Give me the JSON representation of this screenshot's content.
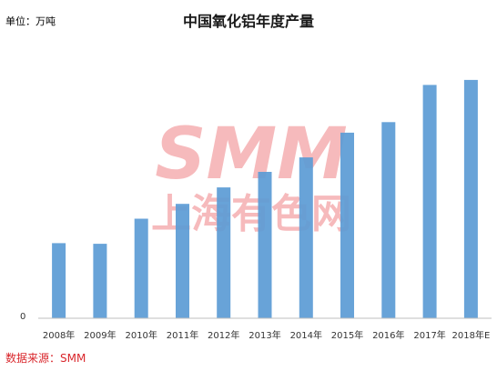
{
  "unit_label": "单位：万吨",
  "source_label": "数据来源：",
  "source_value": "SMM",
  "watermark": {
    "logo_text": "SMM",
    "logo_subtext": "上海有色网",
    "color": "#f4a3a6"
  },
  "colors": {
    "bar": "#5b9bd5",
    "axis": "#bfbfbf",
    "source": "#d9262b"
  },
  "chart_data": {
    "type": "bar",
    "title": "中国氧化铝年度产量",
    "categories": [
      "2008年",
      "2009年",
      "2010年",
      "2011年",
      "2012年",
      "2013年",
      "2014年",
      "2015年",
      "2016年",
      "2017年",
      "2018年E"
    ],
    "values": [
      2280,
      2260,
      3020,
      3470,
      3970,
      4440,
      4880,
      5630,
      5950,
      7080,
      7230
    ],
    "ylim": [
      0,
      8000
    ],
    "yticks": [
      "0"
    ],
    "xlabel": "",
    "ylabel": "",
    "grid": false,
    "legend": "none"
  }
}
